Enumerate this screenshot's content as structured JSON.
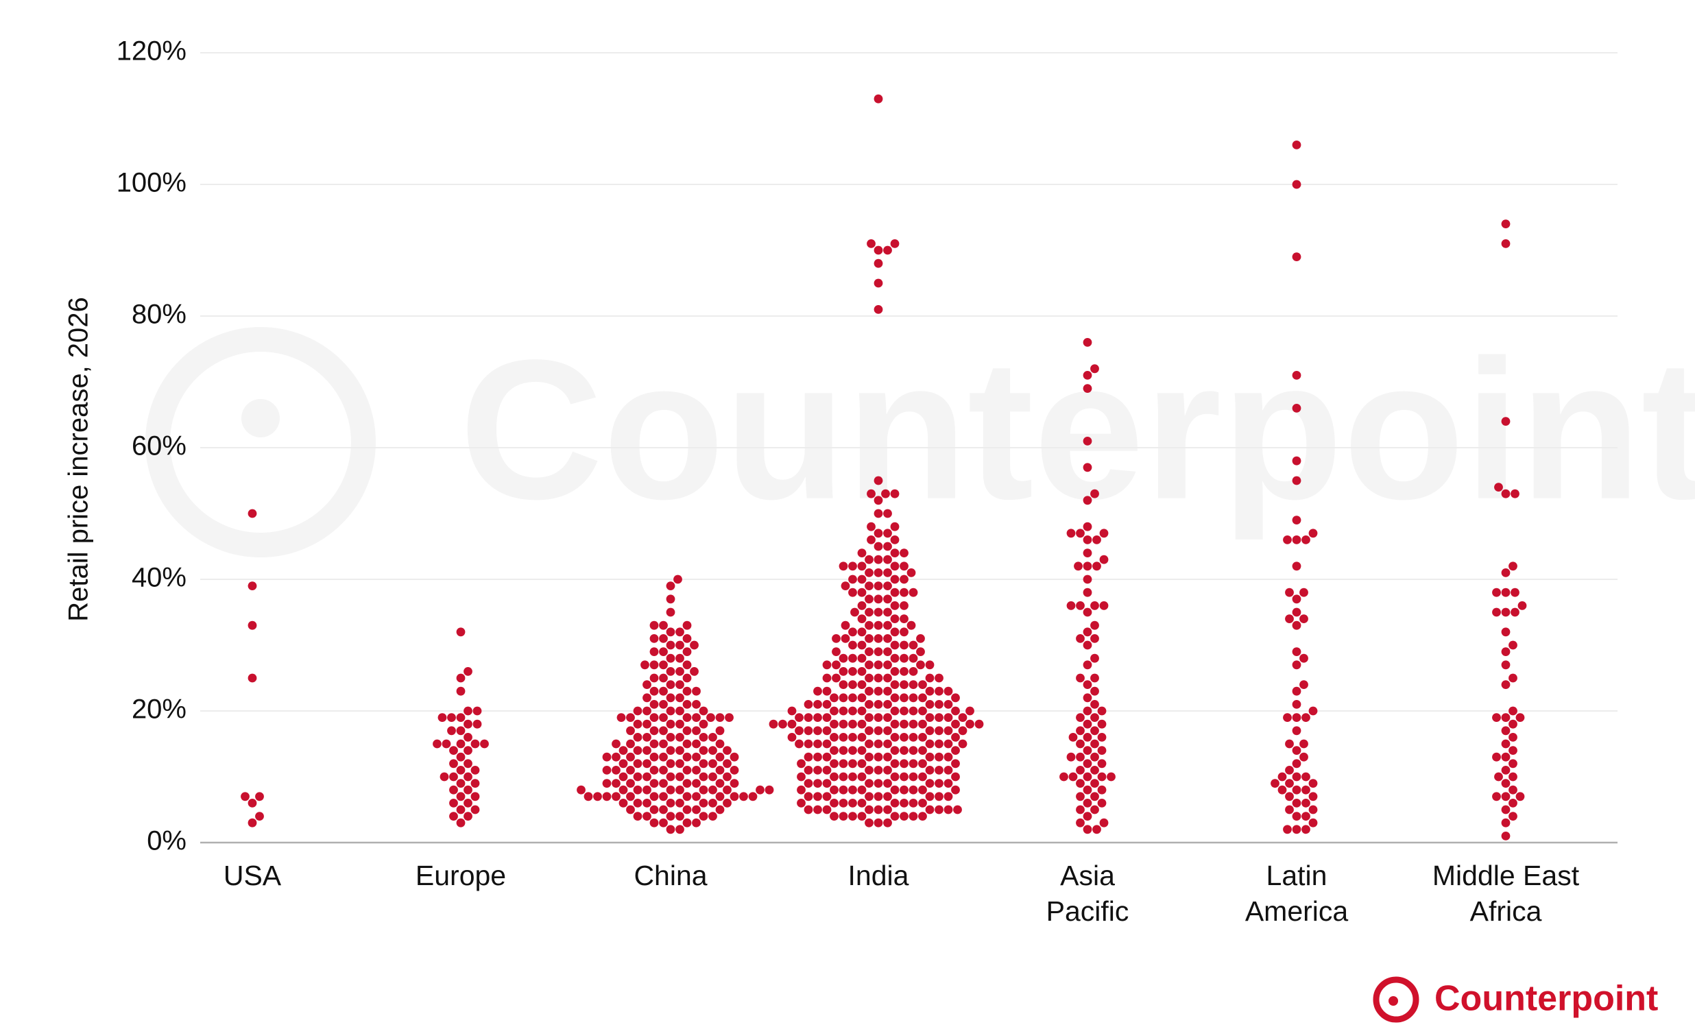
{
  "chart_data": {
    "type": "swarm",
    "y_label": "Retail price increase, 2026",
    "watermark": "Counterpoint",
    "logo_text": "Counterpoint",
    "color": "#c8102e",
    "grid": true,
    "ylim": [
      0,
      120
    ],
    "yticks": [
      {
        "value": 0,
        "label": "0%"
      },
      {
        "value": 20,
        "label": "20%"
      },
      {
        "value": 40,
        "label": "40%"
      },
      {
        "value": 60,
        "label": "60%"
      },
      {
        "value": 80,
        "label": "80%"
      },
      {
        "value": 100,
        "label": "100%"
      },
      {
        "value": 120,
        "label": "120%"
      }
    ],
    "categories": [
      [
        "USA"
      ],
      [
        "Europe"
      ],
      [
        "China"
      ],
      [
        "India"
      ],
      [
        "Asia",
        "Pacific"
      ],
      [
        "Latin",
        "America"
      ],
      [
        "Middle East",
        "Africa"
      ]
    ],
    "values": [
      [
        50,
        39,
        33,
        25,
        7,
        7,
        6,
        4,
        3
      ],
      [
        32,
        26,
        25,
        23,
        20,
        20,
        19,
        19,
        19,
        18,
        18,
        17,
        17,
        16,
        15,
        15,
        15,
        15,
        15,
        14,
        14,
        13,
        12,
        12,
        11,
        11,
        10,
        10,
        10,
        9,
        9,
        8,
        8,
        7,
        7,
        6,
        6,
        5,
        5,
        4,
        4,
        3
      ],
      [
        40,
        39,
        37,
        35,
        33,
        33,
        33,
        32,
        32,
        31,
        31,
        31,
        30,
        30,
        30,
        29,
        29,
        29,
        28,
        28,
        27,
        27,
        27,
        27,
        26,
        26,
        26,
        25,
        25,
        25,
        24,
        24,
        24,
        23,
        23,
        23,
        23,
        22,
        22,
        22,
        21,
        21,
        21,
        21,
        20,
        20,
        20,
        20,
        20,
        19,
        19,
        19,
        19,
        19,
        19,
        19,
        19,
        19,
        18,
        18,
        18,
        18,
        18,
        17,
        17,
        17,
        17,
        17,
        17,
        16,
        16,
        16,
        16,
        16,
        16,
        15,
        15,
        15,
        15,
        15,
        15,
        15,
        14,
        14,
        14,
        14,
        14,
        14,
        14,
        14,
        13,
        13,
        13,
        13,
        13,
        13,
        13,
        13,
        13,
        12,
        12,
        12,
        12,
        12,
        12,
        12,
        12,
        11,
        11,
        11,
        11,
        11,
        11,
        11,
        11,
        11,
        10,
        10,
        10,
        10,
        10,
        10,
        10,
        10,
        9,
        9,
        9,
        9,
        9,
        9,
        9,
        9,
        9,
        8,
        8,
        8,
        8,
        8,
        8,
        8,
        8,
        8,
        8,
        8,
        7,
        7,
        7,
        7,
        7,
        7,
        7,
        7,
        7,
        7,
        7,
        7,
        7,
        6,
        6,
        6,
        6,
        6,
        6,
        6,
        6,
        5,
        5,
        5,
        5,
        5,
        5,
        4,
        4,
        4,
        4,
        4,
        4,
        3,
        3,
        3,
        3,
        2,
        2
      ],
      [
        113,
        91,
        91,
        90,
        90,
        88,
        85,
        81,
        55,
        53,
        53,
        53,
        52,
        50,
        50,
        48,
        48,
        47,
        47,
        46,
        46,
        45,
        45,
        44,
        44,
        44,
        43,
        43,
        43,
        42,
        42,
        42,
        42,
        42,
        41,
        41,
        41,
        41,
        40,
        40,
        40,
        40,
        39,
        39,
        39,
        39,
        38,
        38,
        38,
        38,
        38,
        37,
        37,
        37,
        36,
        36,
        36,
        35,
        35,
        35,
        35,
        34,
        34,
        34,
        33,
        33,
        33,
        33,
        33,
        32,
        32,
        32,
        32,
        31,
        31,
        31,
        31,
        31,
        31,
        30,
        30,
        30,
        30,
        30,
        29,
        29,
        29,
        29,
        29,
        28,
        28,
        28,
        28,
        28,
        28,
        27,
        27,
        27,
        27,
        27,
        27,
        27,
        26,
        26,
        26,
        26,
        26,
        26,
        25,
        25,
        25,
        25,
        25,
        25,
        25,
        24,
        24,
        24,
        24,
        24,
        24,
        24,
        23,
        23,
        23,
        23,
        23,
        23,
        23,
        23,
        22,
        22,
        22,
        22,
        22,
        22,
        22,
        22,
        22,
        21,
        21,
        21,
        21,
        21,
        21,
        21,
        21,
        21,
        20,
        20,
        20,
        20,
        20,
        20,
        20,
        20,
        20,
        20,
        20,
        19,
        19,
        19,
        19,
        19,
        19,
        19,
        19,
        19,
        19,
        19,
        18,
        18,
        18,
        18,
        18,
        18,
        18,
        18,
        18,
        18,
        18,
        18,
        18,
        18,
        17,
        17,
        17,
        17,
        17,
        17,
        17,
        17,
        17,
        17,
        17,
        16,
        16,
        16,
        16,
        16,
        16,
        16,
        16,
        16,
        16,
        15,
        15,
        15,
        15,
        15,
        15,
        15,
        15,
        15,
        15,
        15,
        14,
        14,
        14,
        14,
        14,
        14,
        14,
        14,
        14,
        13,
        13,
        13,
        13,
        13,
        13,
        13,
        13,
        13,
        12,
        12,
        12,
        12,
        12,
        12,
        12,
        12,
        12,
        12,
        11,
        11,
        11,
        11,
        11,
        11,
        11,
        11,
        11,
        10,
        10,
        10,
        10,
        10,
        10,
        10,
        10,
        10,
        10,
        9,
        9,
        9,
        9,
        9,
        9,
        9,
        9,
        9,
        8,
        8,
        8,
        8,
        8,
        8,
        8,
        8,
        8,
        8,
        7,
        7,
        7,
        7,
        7,
        7,
        7,
        7,
        7,
        6,
        6,
        6,
        6,
        6,
        6,
        6,
        6,
        6,
        5,
        5,
        5,
        5,
        5,
        5,
        5,
        5,
        5,
        5,
        4,
        4,
        4,
        4,
        4,
        4,
        4,
        4,
        3,
        3,
        3
      ],
      [
        76,
        72,
        71,
        69,
        61,
        57,
        53,
        52,
        48,
        47,
        47,
        47,
        46,
        46,
        44,
        43,
        42,
        42,
        42,
        40,
        38,
        36,
        36,
        36,
        36,
        35,
        33,
        32,
        31,
        31,
        30,
        28,
        27,
        25,
        25,
        24,
        23,
        22,
        21,
        20,
        20,
        19,
        19,
        18,
        18,
        17,
        17,
        16,
        16,
        16,
        15,
        15,
        14,
        14,
        13,
        13,
        13,
        12,
        12,
        11,
        11,
        10,
        10,
        10,
        10,
        10,
        9,
        9,
        8,
        8,
        7,
        7,
        6,
        6,
        5,
        5,
        4,
        3,
        3,
        2,
        2
      ],
      [
        106,
        100,
        89,
        71,
        66,
        58,
        55,
        49,
        47,
        46,
        46,
        46,
        42,
        38,
        38,
        37,
        35,
        34,
        34,
        33,
        29,
        28,
        27,
        24,
        23,
        21,
        20,
        19,
        19,
        19,
        17,
        15,
        15,
        14,
        13,
        12,
        11,
        10,
        10,
        10,
        9,
        9,
        9,
        8,
        8,
        8,
        7,
        7,
        6,
        6,
        5,
        5,
        4,
        4,
        3,
        2,
        2,
        2
      ],
      [
        94,
        91,
        64,
        54,
        53,
        53,
        42,
        41,
        38,
        38,
        38,
        36,
        35,
        35,
        35,
        32,
        30,
        29,
        27,
        25,
        24,
        20,
        19,
        19,
        19,
        18,
        17,
        16,
        15,
        14,
        13,
        13,
        12,
        11,
        10,
        10,
        9,
        8,
        7,
        7,
        7,
        6,
        5,
        4,
        3,
        1
      ]
    ]
  }
}
